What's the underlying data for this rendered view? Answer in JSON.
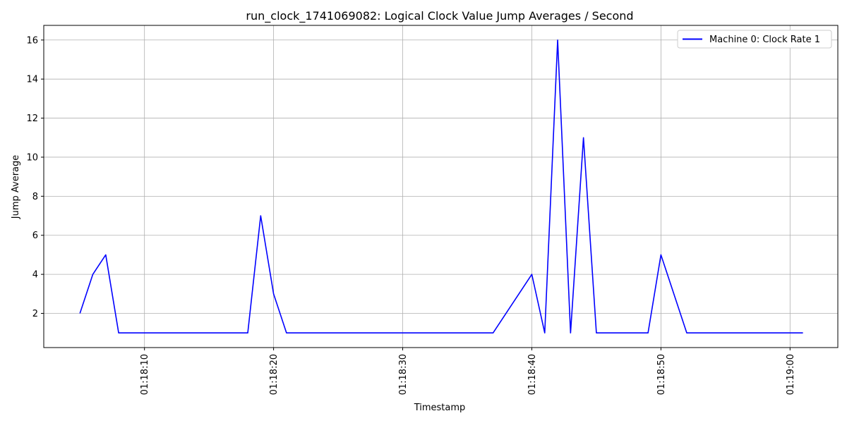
{
  "chart_data": {
    "type": "line",
    "title": "run_clock_1741069082: Logical Clock Value Jump Averages / Second",
    "xlabel": "Timestamp",
    "ylabel": "Jump Average",
    "x_unit": "HH:MM:SS",
    "xlim": [
      "01:18:02.2",
      "01:19:03.7"
    ],
    "ylim": [
      0.25,
      16.75
    ],
    "yticks": [
      2,
      4,
      6,
      8,
      10,
      12,
      14,
      16
    ],
    "xticks": [
      "01:18:10",
      "01:18:20",
      "01:18:30",
      "01:18:40",
      "01:18:50",
      "01:19:00"
    ],
    "grid": true,
    "legend_position": "top-right",
    "series": [
      {
        "name": "Machine 0: Clock Rate 1",
        "color": "#0000ff",
        "x": [
          "01:18:05",
          "01:18:06",
          "01:18:07",
          "01:18:08",
          "01:18:09",
          "01:18:10",
          "01:18:11",
          "01:18:12",
          "01:18:13",
          "01:18:14",
          "01:18:15",
          "01:18:16",
          "01:18:17",
          "01:18:18",
          "01:18:19",
          "01:18:20",
          "01:18:21",
          "01:18:22",
          "01:18:23",
          "01:18:24",
          "01:18:25",
          "01:18:26",
          "01:18:27",
          "01:18:28",
          "01:18:29",
          "01:18:30",
          "01:18:31",
          "01:18:32",
          "01:18:33",
          "01:18:34",
          "01:18:35",
          "01:18:36",
          "01:18:37",
          "01:18:40",
          "01:18:41",
          "01:18:42",
          "01:18:43",
          "01:18:44",
          "01:18:45",
          "01:18:46",
          "01:18:47",
          "01:18:48",
          "01:18:49",
          "01:18:50",
          "01:18:52",
          "01:18:53",
          "01:18:54",
          "01:18:55",
          "01:18:56",
          "01:18:57",
          "01:18:58",
          "01:18:59",
          "01:19:00",
          "01:19:01"
        ],
        "y": [
          2,
          4,
          5,
          1,
          1,
          1,
          1,
          1,
          1,
          1,
          1,
          1,
          1,
          1,
          7,
          3,
          1,
          1,
          1,
          1,
          1,
          1,
          1,
          1,
          1,
          1,
          1,
          1,
          1,
          1,
          1,
          1,
          1,
          4,
          1,
          16,
          1,
          11,
          1,
          1,
          1,
          1,
          1,
          5,
          1,
          1,
          1,
          1,
          1,
          1,
          1,
          1,
          1,
          1
        ]
      }
    ]
  }
}
